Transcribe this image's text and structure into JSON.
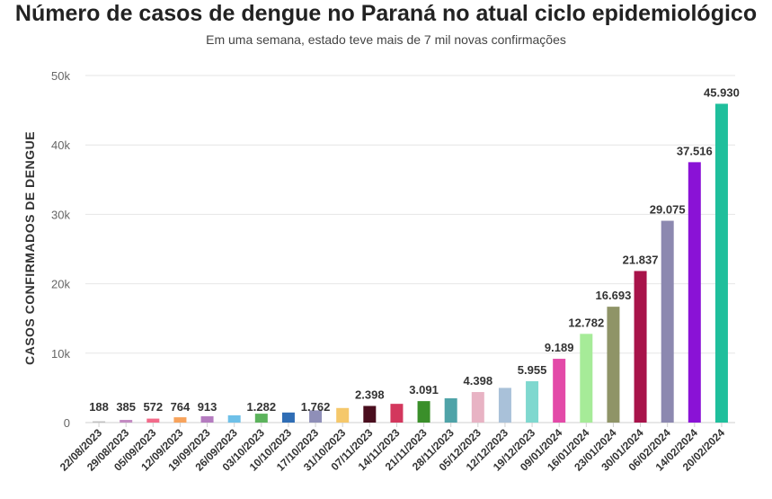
{
  "chart_data": {
    "type": "bar",
    "title": "Número de casos de dengue no Paraná no atual ciclo epidemiológico",
    "subtitle": "Em uma semana, estado teve mais de 7 mil novas confirmações",
    "xlabel": "",
    "ylabel": "CASOS CONFIRMADOS DE DENGUE",
    "ylim": [
      0,
      50000
    ],
    "yticks": [
      0,
      10000,
      20000,
      30000,
      40000,
      50000
    ],
    "ytick_labels": [
      "0",
      "10k",
      "20k",
      "30k",
      "40k",
      "50k"
    ],
    "grid": true,
    "categories": [
      "22/08/2023",
      "29/08/2023",
      "05/09/2023",
      "12/09/2023",
      "19/09/2023",
      "26/09/2023",
      "03/10/2023",
      "10/10/2023",
      "17/10/2023",
      "31/10/2023",
      "07/11/2023",
      "14/11/2023",
      "21/11/2023",
      "28/11/2023",
      "05/12/2023",
      "12/12/2023",
      "19/12/2023",
      "09/01/2024",
      "16/01/2024",
      "23/01/2024",
      "30/01/2024",
      "06/02/2024",
      "14/02/2024",
      "20/02/2024"
    ],
    "values": [
      188,
      385,
      572,
      764,
      913,
      1050,
      1282,
      1450,
      1762,
      2100,
      2398,
      2700,
      3091,
      3500,
      4398,
      5000,
      5955,
      9189,
      12782,
      16693,
      21837,
      29075,
      37516,
      45930
    ],
    "data_labels": [
      "188",
      "385",
      "572",
      "764",
      "913",
      "",
      "1.282",
      "",
      "1.762",
      "",
      "2.398",
      "",
      "3.091",
      "",
      "4.398",
      "",
      "5.955",
      "9.189",
      "12.782",
      "16.693",
      "21.837",
      "29.075",
      "37.516",
      "45.930"
    ],
    "colors": [
      "#bfbfbf",
      "#c38bc2",
      "#f26b8a",
      "#f7a35c",
      "#b57cc0",
      "#6ec0e8",
      "#5cb35c",
      "#2f6db5",
      "#8f8fb8",
      "#f5c86b",
      "#4a0e1e",
      "#d3375d",
      "#3a8f2a",
      "#4fa3a8",
      "#e8b3c4",
      "#a9c1d9",
      "#7fd8cf",
      "#e34aa8",
      "#a6eb98",
      "#8f9467",
      "#a8134a",
      "#8c88b0",
      "#8a12d6",
      "#1fbf9c"
    ]
  }
}
